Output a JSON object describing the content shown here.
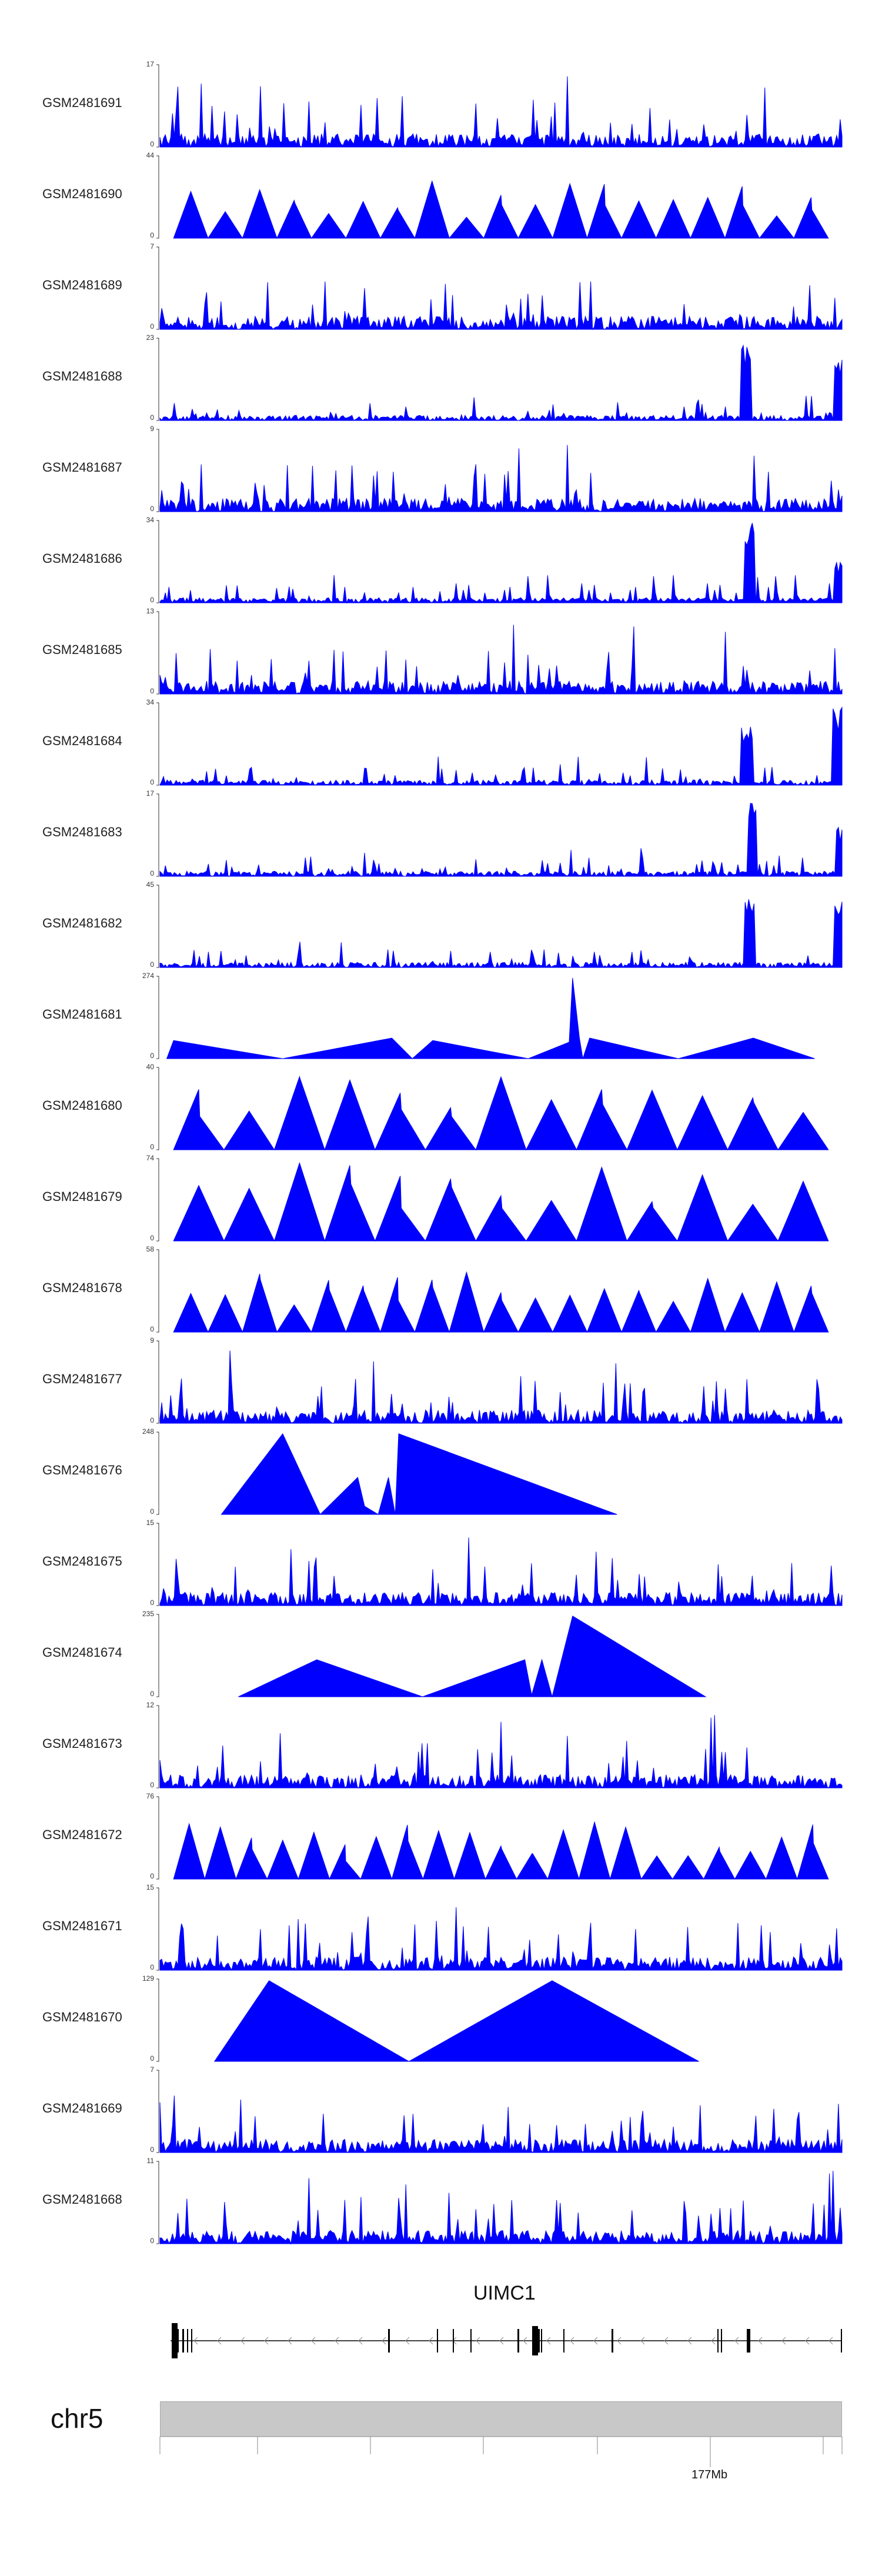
{
  "chart_data": {
    "type": "area",
    "title": "",
    "xlabel": "",
    "ylabel": "",
    "tracks": [
      {
        "label": "GSM2481691",
        "ymax": "17",
        "ymin": "0",
        "style": "dense"
      },
      {
        "label": "GSM2481690",
        "ymax": "44",
        "ymin": "0",
        "style": "triangles"
      },
      {
        "label": "GSM2481689",
        "ymax": "7",
        "ymin": "0",
        "style": "dense"
      },
      {
        "label": "GSM2481688",
        "ymax": "23",
        "ymin": "0",
        "style": "dense-peaks"
      },
      {
        "label": "GSM2481687",
        "ymax": "9",
        "ymin": "0",
        "style": "dense"
      },
      {
        "label": "GSM2481686",
        "ymax": "34",
        "ymin": "0",
        "style": "dense-peaks"
      },
      {
        "label": "GSM2481685",
        "ymax": "13",
        "ymin": "0",
        "style": "dense"
      },
      {
        "label": "GSM2481684",
        "ymax": "34",
        "ymin": "0",
        "style": "dense-peaks"
      },
      {
        "label": "GSM2481683",
        "ymax": "17",
        "ymin": "0",
        "style": "dense-peaks"
      },
      {
        "label": "GSM2481682",
        "ymax": "45",
        "ymin": "0",
        "style": "dense-peaks"
      },
      {
        "label": "GSM2481681",
        "ymax": "274",
        "ymin": "0",
        "style": "sparse-low"
      },
      {
        "label": "GSM2481680",
        "ymax": "40",
        "ymin": "0",
        "style": "large-triangles"
      },
      {
        "label": "GSM2481679",
        "ymax": "74",
        "ymin": "0",
        "style": "large-triangles"
      },
      {
        "label": "GSM2481678",
        "ymax": "58",
        "ymin": "0",
        "style": "triangles"
      },
      {
        "label": "GSM2481677",
        "ymax": "9",
        "ymin": "0",
        "style": "dense"
      },
      {
        "label": "GSM2481676",
        "ymax": "248",
        "ymin": "0",
        "style": "big-sparse"
      },
      {
        "label": "GSM2481675",
        "ymax": "15",
        "ymin": "0",
        "style": "dense"
      },
      {
        "label": "GSM2481674",
        "ymax": "235",
        "ymin": "0",
        "style": "big-sparse"
      },
      {
        "label": "GSM2481673",
        "ymax": "12",
        "ymin": "0",
        "style": "dense"
      },
      {
        "label": "GSM2481672",
        "ymax": "76",
        "ymin": "0",
        "style": "triangles"
      },
      {
        "label": "GSM2481671",
        "ymax": "15",
        "ymin": "0",
        "style": "dense"
      },
      {
        "label": "GSM2481670",
        "ymax": "129",
        "ymin": "0",
        "style": "two-triangles"
      },
      {
        "label": "GSM2481669",
        "ymax": "7",
        "ymin": "0",
        "style": "dense"
      },
      {
        "label": "GSM2481668",
        "ymax": "11",
        "ymin": "0",
        "style": "dense"
      }
    ],
    "gene": {
      "name": "UIMC1",
      "strand": "-"
    },
    "chromosome": "chr5",
    "axis_tick_label": "177Mb"
  },
  "colors": {
    "signal": "#0000ff",
    "ideogram": "#c8c8c8",
    "gene": "#000000"
  }
}
